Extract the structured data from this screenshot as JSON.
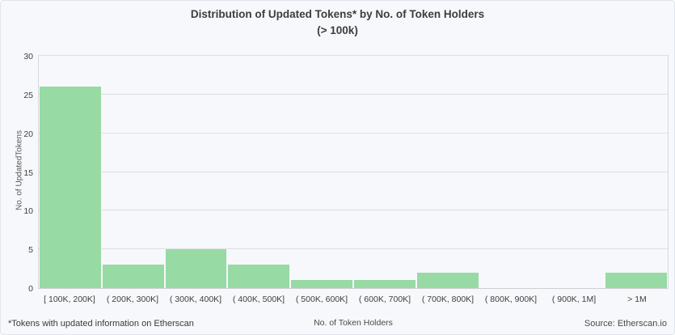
{
  "figure": {
    "title_line1": "Distribution of Updated Tokens* by No. of Token Holders",
    "title_line2": "(> 100k)",
    "footnote": "*Tokens with updated information on Etherscan",
    "source": "Source: Etherscan.io"
  },
  "chart_data": {
    "type": "bar",
    "title": "Distribution of Updated Tokens* by No. of Token Holders (> 100k)",
    "categories": [
      "[ 100K,  200K]",
      "( 200K,  300K]",
      "( 300K,  400K]",
      "( 400K,  500K]",
      "( 500K,  600K]",
      "( 600K,  700K]",
      "( 700K,  800K]",
      "( 800K,  900K]",
      "( 900K,  1M]",
      "> 1M"
    ],
    "values": [
      26,
      3,
      5,
      3,
      1,
      1,
      2,
      0,
      0,
      2
    ],
    "xlabel": "No. of Token Holders",
    "ylabel": "No. of UpdatedTokens",
    "ylim": [
      0,
      30
    ],
    "yticks": [
      0,
      5,
      10,
      15,
      20,
      25,
      30
    ],
    "grid": true,
    "legend": "none",
    "bar_color": "#97daa4",
    "background_color": "#f7f8fb",
    "gridline_color": "#dddfe3"
  }
}
